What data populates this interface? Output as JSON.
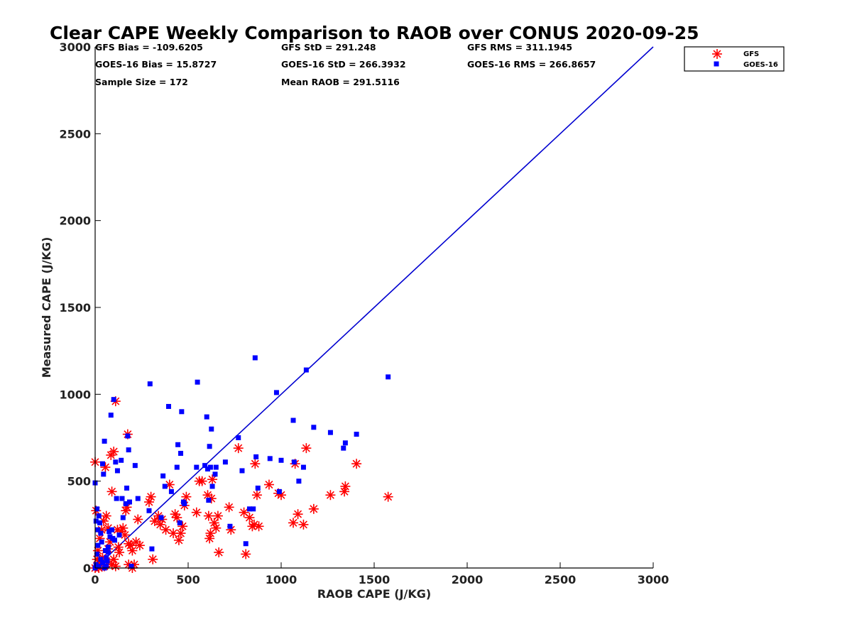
{
  "chart_data": {
    "type": "scatter",
    "title": "Clear CAPE Weekly Comparison to RAOB over CONUS 2020-09-25",
    "xlabel": "RAOB CAPE (J/KG)",
    "ylabel": "Measured CAPE (J/KG)",
    "xlim": [
      0,
      3000
    ],
    "ylim": [
      0,
      3000
    ],
    "xticks": [
      0,
      500,
      1000,
      1500,
      2000,
      2500,
      3000
    ],
    "yticks": [
      0,
      500,
      1000,
      1500,
      2000,
      2500,
      3000
    ],
    "grid": false,
    "legend_position": "top-right",
    "stats": [
      "GFS Bias = -109.6205",
      "GFS StD = 291.248",
      "GFS RMS = 311.1945",
      "GOES-16 Bias = 15.8727",
      "GOES-16 StD = 266.3932",
      "GOES-16 RMS = 266.8657",
      "Sample Size = 172",
      "Mean RAOB = 291.5116"
    ],
    "reference_line": {
      "x": [
        0,
        3000
      ],
      "y": [
        0,
        3000
      ],
      "color": "#0000d0"
    },
    "series": [
      {
        "name": "GFS",
        "marker": "asterisk",
        "color": "#ff0000",
        "points": [
          [
            0,
            610
          ],
          [
            5,
            330
          ],
          [
            0,
            0
          ],
          [
            10,
            10
          ],
          [
            20,
            30
          ],
          [
            30,
            20
          ],
          [
            40,
            60
          ],
          [
            15,
            100
          ],
          [
            25,
            170
          ],
          [
            35,
            220
          ],
          [
            45,
            270
          ],
          [
            55,
            580
          ],
          [
            60,
            300
          ],
          [
            70,
            230
          ],
          [
            80,
            150
          ],
          [
            85,
            650
          ],
          [
            90,
            440
          ],
          [
            100,
            670
          ],
          [
            110,
            960
          ],
          [
            120,
            220
          ],
          [
            125,
            120
          ],
          [
            130,
            90
          ],
          [
            140,
            210
          ],
          [
            150,
            230
          ],
          [
            160,
            190
          ],
          [
            165,
            330
          ],
          [
            170,
            350
          ],
          [
            175,
            770
          ],
          [
            180,
            140
          ],
          [
            190,
            130
          ],
          [
            200,
            100
          ],
          [
            210,
            20
          ],
          [
            220,
            150
          ],
          [
            230,
            280
          ],
          [
            240,
            130
          ],
          [
            290,
            380
          ],
          [
            300,
            410
          ],
          [
            310,
            50
          ],
          [
            320,
            270
          ],
          [
            340,
            300
          ],
          [
            350,
            250
          ],
          [
            360,
            280
          ],
          [
            380,
            220
          ],
          [
            400,
            480
          ],
          [
            420,
            200
          ],
          [
            430,
            310
          ],
          [
            440,
            290
          ],
          [
            450,
            160
          ],
          [
            460,
            200
          ],
          [
            470,
            240
          ],
          [
            480,
            360
          ],
          [
            490,
            410
          ],
          [
            545,
            320
          ],
          [
            560,
            500
          ],
          [
            575,
            500
          ],
          [
            605,
            420
          ],
          [
            610,
            300
          ],
          [
            615,
            170
          ],
          [
            620,
            200
          ],
          [
            625,
            400
          ],
          [
            630,
            510
          ],
          [
            640,
            260
          ],
          [
            650,
            230
          ],
          [
            660,
            300
          ],
          [
            665,
            90
          ],
          [
            720,
            350
          ],
          [
            730,
            220
          ],
          [
            770,
            690
          ],
          [
            800,
            320
          ],
          [
            810,
            80
          ],
          [
            830,
            290
          ],
          [
            845,
            240
          ],
          [
            855,
            250
          ],
          [
            860,
            600
          ],
          [
            870,
            420
          ],
          [
            880,
            240
          ],
          [
            935,
            480
          ],
          [
            985,
            430
          ],
          [
            1000,
            420
          ],
          [
            1065,
            260
          ],
          [
            1075,
            600
          ],
          [
            1090,
            310
          ],
          [
            1120,
            250
          ],
          [
            1135,
            690
          ],
          [
            1175,
            340
          ],
          [
            1265,
            420
          ],
          [
            1340,
            440
          ],
          [
            1345,
            470
          ],
          [
            1405,
            600
          ],
          [
            1575,
            410
          ],
          [
            10,
            50
          ],
          [
            20,
            0
          ],
          [
            50,
            10
          ],
          [
            60,
            40
          ],
          [
            70,
            110
          ],
          [
            90,
            20
          ],
          [
            100,
            50
          ],
          [
            110,
            10
          ],
          [
            180,
            20
          ],
          [
            200,
            0
          ]
        ]
      },
      {
        "name": "GOES-16",
        "marker": "square",
        "color": "#0000ff",
        "points": [
          [
            0,
            490
          ],
          [
            5,
            270
          ],
          [
            10,
            340
          ],
          [
            15,
            220
          ],
          [
            20,
            300
          ],
          [
            25,
            260
          ],
          [
            30,
            200
          ],
          [
            35,
            150
          ],
          [
            40,
            600
          ],
          [
            45,
            540
          ],
          [
            50,
            730
          ],
          [
            55,
            100
          ],
          [
            60,
            60
          ],
          [
            65,
            40
          ],
          [
            70,
            120
          ],
          [
            75,
            210
          ],
          [
            80,
            180
          ],
          [
            85,
            880
          ],
          [
            90,
            220
          ],
          [
            95,
            170
          ],
          [
            100,
            970
          ],
          [
            105,
            160
          ],
          [
            110,
            610
          ],
          [
            115,
            400
          ],
          [
            120,
            560
          ],
          [
            130,
            190
          ],
          [
            140,
            620
          ],
          [
            145,
            400
          ],
          [
            150,
            290
          ],
          [
            165,
            370
          ],
          [
            170,
            460
          ],
          [
            175,
            760
          ],
          [
            180,
            680
          ],
          [
            185,
            380
          ],
          [
            195,
            10
          ],
          [
            215,
            590
          ],
          [
            230,
            400
          ],
          [
            290,
            330
          ],
          [
            295,
            1060
          ],
          [
            305,
            110
          ],
          [
            355,
            290
          ],
          [
            365,
            530
          ],
          [
            375,
            470
          ],
          [
            395,
            930
          ],
          [
            410,
            440
          ],
          [
            440,
            580
          ],
          [
            445,
            710
          ],
          [
            455,
            260
          ],
          [
            460,
            660
          ],
          [
            465,
            900
          ],
          [
            475,
            380
          ],
          [
            480,
            370
          ],
          [
            545,
            580
          ],
          [
            550,
            1070
          ],
          [
            590,
            590
          ],
          [
            600,
            870
          ],
          [
            605,
            570
          ],
          [
            610,
            390
          ],
          [
            615,
            700
          ],
          [
            620,
            580
          ],
          [
            625,
            800
          ],
          [
            630,
            470
          ],
          [
            645,
            540
          ],
          [
            650,
            580
          ],
          [
            700,
            610
          ],
          [
            725,
            240
          ],
          [
            770,
            750
          ],
          [
            790,
            560
          ],
          [
            810,
            140
          ],
          [
            830,
            340
          ],
          [
            850,
            340
          ],
          [
            860,
            1210
          ],
          [
            865,
            640
          ],
          [
            875,
            460
          ],
          [
            940,
            630
          ],
          [
            975,
            1010
          ],
          [
            990,
            440
          ],
          [
            1000,
            620
          ],
          [
            1065,
            850
          ],
          [
            1070,
            610
          ],
          [
            1095,
            500
          ],
          [
            1120,
            580
          ],
          [
            1135,
            1140
          ],
          [
            1175,
            810
          ],
          [
            1265,
            780
          ],
          [
            1335,
            690
          ],
          [
            1345,
            720
          ],
          [
            1405,
            770
          ],
          [
            1575,
            1100
          ],
          [
            0,
            0
          ],
          [
            5,
            20
          ],
          [
            10,
            80
          ],
          [
            15,
            130
          ],
          [
            20,
            10
          ],
          [
            30,
            50
          ],
          [
            40,
            30
          ],
          [
            50,
            0
          ],
          [
            60,
            10
          ],
          [
            70,
            90
          ]
        ]
      }
    ]
  }
}
